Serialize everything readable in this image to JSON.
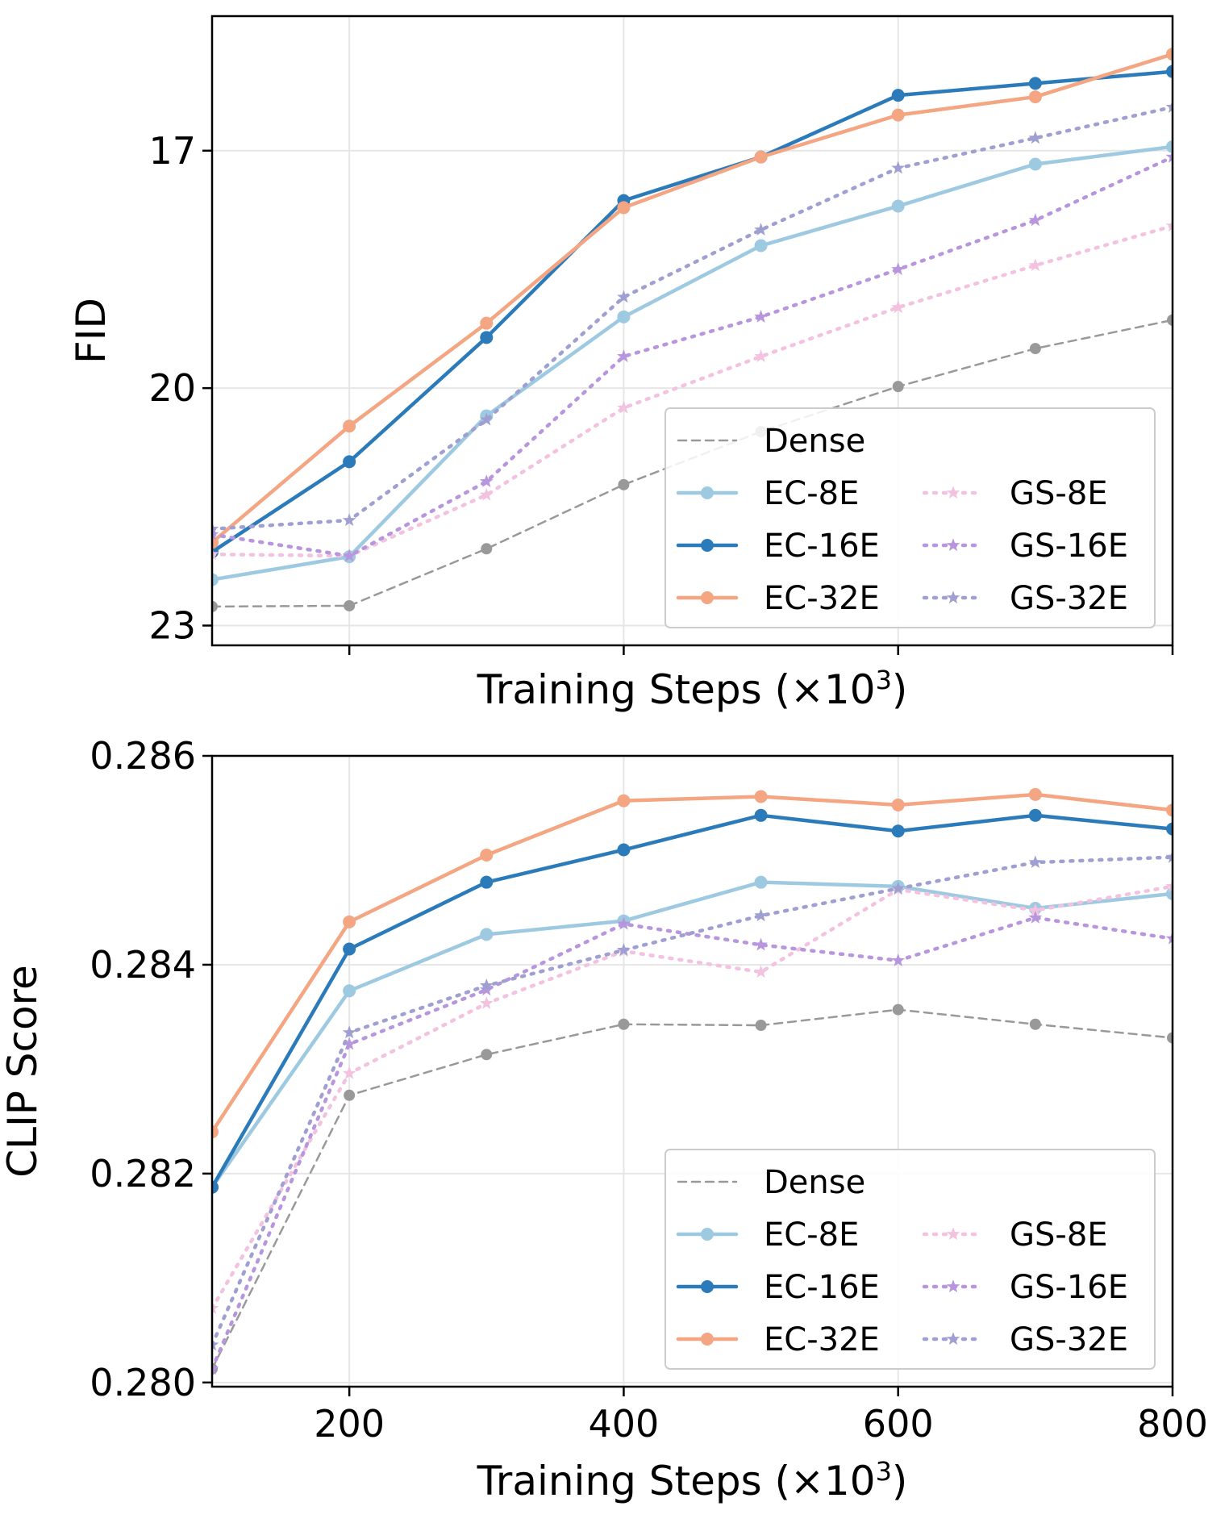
{
  "colors": {
    "Dense": "#999999",
    "EC-8E": "#9ecae1",
    "EC-16E": "#2b7bba",
    "EC-32E": "#f4a582",
    "GS-8E": "#f3c2e0",
    "GS-16E": "#b796dd",
    "GS-32E": "#9f9fd2"
  },
  "chart_data": [
    {
      "type": "line",
      "xlabel": "Training Steps (×10",
      "xlabel_sup": "3",
      "xlabel_end": ")",
      "ylabel": "FID",
      "xlim": [
        100,
        800
      ],
      "ylim": [
        23.25,
        15.3
      ],
      "y_inverted": true,
      "grid": true,
      "x_ticks": [
        200,
        400,
        600,
        800
      ],
      "x_tick_labels": [],
      "y_ticks": [
        17,
        20,
        23
      ],
      "y_tick_labels": [
        "17",
        "20",
        "23"
      ],
      "x": [
        100,
        200,
        300,
        400,
        500,
        600,
        700,
        800
      ],
      "legend_position": "lower-right",
      "series": [
        {
          "name": "Dense",
          "style": "dashed",
          "marker": "circle",
          "values": [
            22.76,
            22.75,
            22.03,
            21.22,
            20.55,
            19.98,
            19.5,
            19.14
          ]
        },
        {
          "name": "EC-8E",
          "style": "solid",
          "marker": "circle",
          "values": [
            22.42,
            22.13,
            20.35,
            19.1,
            18.2,
            17.7,
            17.17,
            16.95
          ]
        },
        {
          "name": "EC-16E",
          "style": "solid",
          "marker": "circle",
          "values": [
            22.07,
            20.93,
            19.36,
            17.63,
            17.08,
            16.3,
            16.15,
            16.0
          ]
        },
        {
          "name": "EC-32E",
          "style": "solid",
          "marker": "circle",
          "values": [
            21.95,
            20.48,
            19.18,
            17.72,
            17.08,
            16.55,
            16.32,
            15.78
          ]
        },
        {
          "name": "GS-8E",
          "style": "dotted",
          "marker": "star",
          "values": [
            22.1,
            22.12,
            21.35,
            20.25,
            19.6,
            18.98,
            18.45,
            17.95
          ]
        },
        {
          "name": "GS-16E",
          "style": "dotted",
          "marker": "star",
          "values": [
            21.85,
            22.12,
            21.18,
            19.6,
            19.1,
            18.5,
            17.88,
            17.08
          ]
        },
        {
          "name": "GS-32E",
          "style": "dotted",
          "marker": "star",
          "values": [
            21.78,
            21.67,
            20.4,
            18.85,
            18.0,
            17.22,
            16.84,
            16.45
          ]
        }
      ]
    },
    {
      "type": "line",
      "xlabel": "Training Steps (×10",
      "xlabel_sup": "3",
      "xlabel_end": ")",
      "ylabel": "CLIP Score",
      "xlim": [
        100,
        800
      ],
      "ylim": [
        0.27996,
        0.286
      ],
      "y_inverted": false,
      "grid": true,
      "x_ticks": [
        200,
        400,
        600,
        800
      ],
      "x_tick_labels": [
        "200",
        "400",
        "600",
        "800"
      ],
      "y_ticks": [
        0.28,
        0.282,
        0.284,
        0.286
      ],
      "y_tick_labels": [
        "0.280",
        "0.282",
        "0.284",
        "0.286"
      ],
      "x": [
        100,
        200,
        300,
        400,
        500,
        600,
        700,
        800
      ],
      "legend_position": "lower-right",
      "series": [
        {
          "name": "Dense",
          "style": "dashed",
          "marker": "circle",
          "values": [
            0.28013,
            0.28275,
            0.28314,
            0.28343,
            0.28342,
            0.28357,
            0.28343,
            0.2833
          ]
        },
        {
          "name": "EC-8E",
          "style": "solid",
          "marker": "circle",
          "values": [
            0.28187,
            0.28375,
            0.28429,
            0.28442,
            0.28479,
            0.28475,
            0.28454,
            0.28468
          ]
        },
        {
          "name": "EC-16E",
          "style": "solid",
          "marker": "circle",
          "values": [
            0.28187,
            0.28415,
            0.28479,
            0.2851,
            0.28543,
            0.28528,
            0.28543,
            0.2853
          ]
        },
        {
          "name": "EC-32E",
          "style": "solid",
          "marker": "circle",
          "values": [
            0.2824,
            0.28441,
            0.28505,
            0.28557,
            0.28561,
            0.28553,
            0.28563,
            0.28548
          ]
        },
        {
          "name": "GS-8E",
          "style": "dotted",
          "marker": "star",
          "values": [
            0.28071,
            0.28296,
            0.28363,
            0.28413,
            0.28393,
            0.28472,
            0.28452,
            0.28475
          ]
        },
        {
          "name": "GS-16E",
          "style": "dotted",
          "marker": "star",
          "values": [
            0.28013,
            0.28324,
            0.28376,
            0.28439,
            0.28419,
            0.28404,
            0.28445,
            0.28425
          ]
        },
        {
          "name": "GS-32E",
          "style": "dotted",
          "marker": "star",
          "values": [
            0.28036,
            0.28335,
            0.2838,
            0.28414,
            0.28447,
            0.28473,
            0.28498,
            0.28503
          ]
        }
      ]
    }
  ]
}
